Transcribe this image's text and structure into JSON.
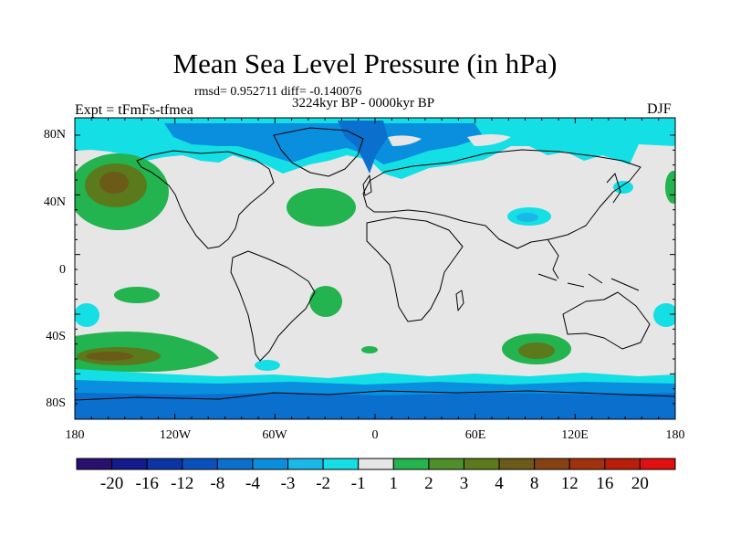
{
  "title": "Mean Sea Level Pressure (in hPa)",
  "stats": "rmsd= 0.952711 diff= -0.140076",
  "period": "3224kyr BP - 0000kyr BP",
  "experiment": "Expt = tFmFs-tfmea",
  "season": "DJF",
  "lat_labels": [
    "80N",
    "40N",
    "0",
    "40S",
    "80S"
  ],
  "lon_labels": [
    "180",
    "120W",
    "60W",
    "0",
    "60E",
    "120E",
    "180"
  ],
  "colorbar": {
    "colors": [
      "#2a0f6e",
      "#151a8c",
      "#0b34a6",
      "#0a52bb",
      "#0a6fcd",
      "#0a8fdf",
      "#1ab7e9",
      "#13dfe5",
      "#e6e6e6",
      "#23b34f",
      "#4e8f2a",
      "#5b7a1c",
      "#6b5a18",
      "#874212",
      "#a2310d",
      "#bb1d0b",
      "#e10f0f"
    ],
    "labels": [
      "-20",
      "-16",
      "-12",
      "-8",
      "-4",
      "-3",
      "-2",
      "-1",
      "1",
      "2",
      "3",
      "4",
      "8",
      "12",
      "16",
      "20"
    ]
  },
  "field_colors": {
    "background": "#e6e6e6",
    "light_blue": "#13dfe5",
    "mid_blue": "#1ab7e9",
    "blue": "#0a8fdf",
    "deep_blue": "#0a6fcd",
    "green": "#23b34f",
    "olive": "#5b7a1c",
    "brown": "#6b5a18"
  }
}
